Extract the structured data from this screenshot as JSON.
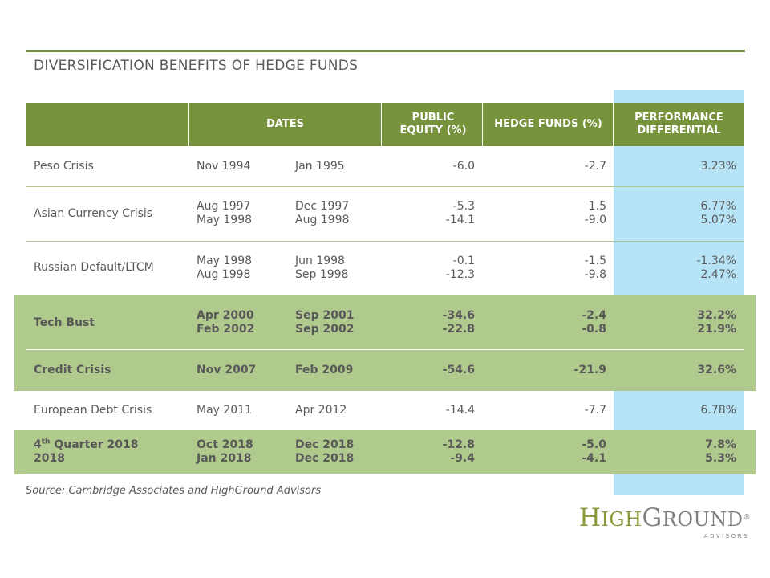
{
  "title": "DIVERSIFICATION BENEFITS OF HEDGE FUNDS",
  "table": {
    "headers": {
      "dates": "DATES",
      "public_equity": "PUBLIC EQUITY (%)",
      "hedge_funds": "HEDGE FUNDS (%)",
      "performance": "PERFORMANCE DIFFERENTIAL"
    },
    "rows": [
      {
        "name": "Peso Crisis",
        "start": [
          "Nov 1994"
        ],
        "end": [
          "Jan 1995"
        ],
        "public_equity": [
          "-6.0"
        ],
        "hedge_funds": [
          "-2.7"
        ],
        "differential": [
          "3.23%"
        ],
        "highlight": false
      },
      {
        "name": "Asian Currency Crisis",
        "start": [
          "Aug 1997",
          "May 1998"
        ],
        "end": [
          "Dec 1997",
          "Aug 1998"
        ],
        "public_equity": [
          "-5.3",
          "-14.1"
        ],
        "hedge_funds": [
          "1.5",
          "-9.0"
        ],
        "differential": [
          "6.77%",
          "5.07%"
        ],
        "highlight": false
      },
      {
        "name": "Russian Default/LTCM",
        "start": [
          "May 1998",
          "Aug 1998"
        ],
        "end": [
          "Jun 1998",
          "Sep 1998"
        ],
        "public_equity": [
          "-0.1",
          "-12.3"
        ],
        "hedge_funds": [
          "-1.5",
          "-9.8"
        ],
        "differential": [
          "-1.34%",
          "2.47%"
        ],
        "highlight": false
      },
      {
        "name": "Tech Bust",
        "start": [
          "Apr 2000",
          "Feb 2002"
        ],
        "end": [
          "Sep 2001",
          "Sep 2002"
        ],
        "public_equity": [
          "-34.6",
          "-22.8"
        ],
        "hedge_funds": [
          "-2.4",
          "-0.8"
        ],
        "differential": [
          "32.2%",
          "21.9%"
        ],
        "highlight": true
      },
      {
        "name": "Credit Crisis",
        "start": [
          "Nov 2007"
        ],
        "end": [
          "Feb 2009"
        ],
        "public_equity": [
          "-54.6"
        ],
        "hedge_funds": [
          "-21.9"
        ],
        "differential": [
          "32.6%"
        ],
        "highlight": true
      },
      {
        "name": "European Debt Crisis",
        "start": [
          "May 2011"
        ],
        "end": [
          "Apr 2012"
        ],
        "public_equity": [
          "-14.4"
        ],
        "hedge_funds": [
          "-7.7"
        ],
        "differential": [
          "6.78%"
        ],
        "highlight": false
      },
      {
        "name_num": "4",
        "name_sup": "th",
        "name_rest": " Quarter 2018",
        "name_line2": "2018",
        "start": [
          "Oct 2018",
          "Jan 2018"
        ],
        "end": [
          "Dec 2018",
          "Dec 2018"
        ],
        "public_equity": [
          "-12.8",
          "-9.4"
        ],
        "hedge_funds": [
          "-5.0",
          "-4.1"
        ],
        "differential": [
          "7.8%",
          "5.3%"
        ],
        "highlight": true
      }
    ]
  },
  "source": "Source: Cambridge Associates and HighGround Advisors",
  "logo": {
    "high": "HIGH",
    "ground": "GROUND",
    "sub": "ADVISORS",
    "reg": "®"
  },
  "colors": {
    "header_green": "#77933c",
    "band_green": "#b0c98c",
    "highlight_blue": "#b6e3f5",
    "rule_green": "#76923c"
  }
}
